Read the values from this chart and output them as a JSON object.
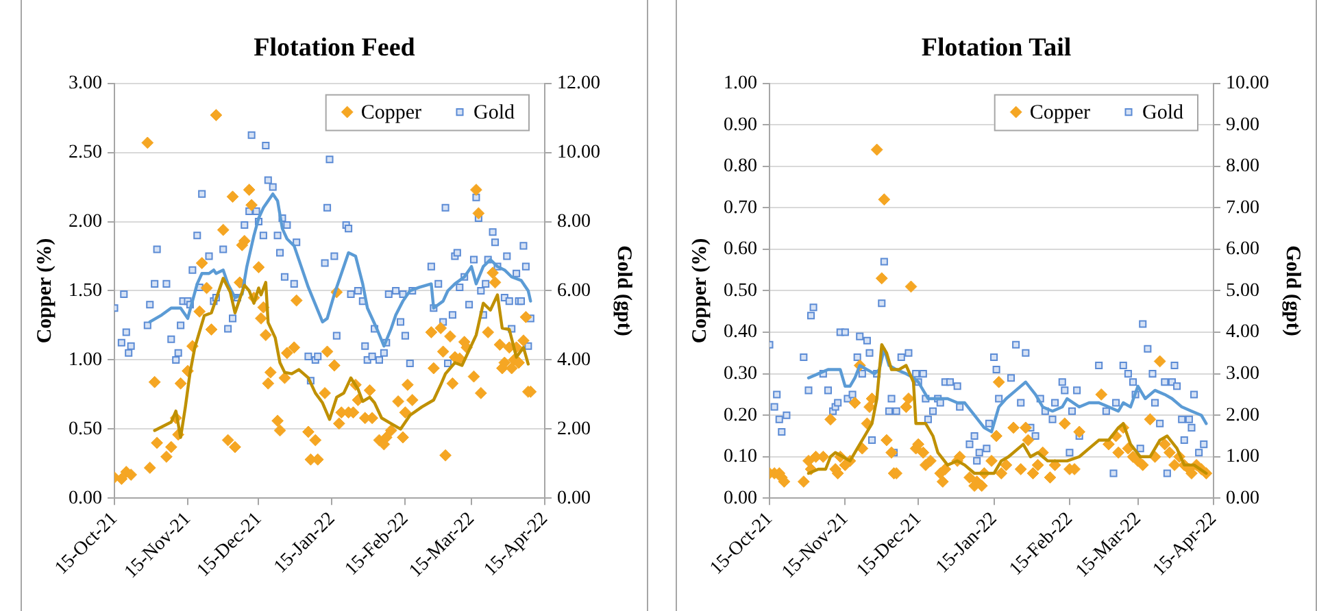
{
  "chart_data": [
    {
      "type": "scatter",
      "title": "Flotation Feed",
      "ylabel": "Copper (%)",
      "y2label": "Gold (gpt)",
      "grid": "y",
      "legend": "top right",
      "xlim": [
        "2021-10-15",
        "2022-04-15"
      ],
      "xticks": [
        {
          "value": "2021-10-15",
          "label": "15-Oct-21"
        },
        {
          "value": "2021-11-15",
          "label": "15-Nov-21"
        },
        {
          "value": "2021-12-15",
          "label": "15-Dec-21"
        },
        {
          "value": "2022-01-15",
          "label": "15-Jan-22"
        },
        {
          "value": "2022-02-15",
          "label": "15-Feb-22"
        },
        {
          "value": "2022-03-15",
          "label": "15-Mar-22"
        },
        {
          "value": "2022-04-15",
          "label": "15-Apr-22"
        }
      ],
      "ylim": [
        0,
        3
      ],
      "yticks": [
        {
          "value": 0,
          "label": "0.00"
        },
        {
          "value": 0.5,
          "label": "0.50"
        },
        {
          "value": 1,
          "label": "1.00"
        },
        {
          "value": 1.5,
          "label": "1.50"
        },
        {
          "value": 2,
          "label": "2.00"
        },
        {
          "value": 2.5,
          "label": "2.50"
        },
        {
          "value": 3,
          "label": "3.00"
        }
      ],
      "y2lim": [
        0,
        12
      ],
      "y2ticks": [
        {
          "value": 0,
          "label": "0.00"
        },
        {
          "value": 2,
          "label": "2.00"
        },
        {
          "value": 4,
          "label": "4.00"
        },
        {
          "value": 6,
          "label": "6.00"
        },
        {
          "value": 8,
          "label": "8.00"
        },
        {
          "value": 10,
          "label": "10.00"
        },
        {
          "value": 12,
          "label": "12.00"
        }
      ],
      "series": [
        {
          "type": "scatter",
          "name": "Copper",
          "color": "#f5a623",
          "marker": "diamond",
          "x": [
            "2021-10-15",
            "2021-10-18",
            "2021-10-20",
            "2021-10-22",
            "2021-10-29",
            "2021-10-30",
            "2021-11-01",
            "2021-11-02",
            "2021-11-06",
            "2021-11-08",
            "2021-11-10",
            "2021-11-11",
            "2021-11-12",
            "2021-11-15",
            "2021-11-17",
            "2021-11-20",
            "2021-11-21",
            "2021-11-23",
            "2021-11-25",
            "2021-11-27",
            "2021-11-30",
            "2021-12-02",
            "2021-12-04",
            "2021-12-05",
            "2021-12-07",
            "2021-12-08",
            "2021-12-09",
            "2021-12-11",
            "2021-12-12",
            "2021-12-13",
            "2021-12-15",
            "2021-12-16",
            "2021-12-17",
            "2021-12-18",
            "2021-12-19",
            "2021-12-20",
            "2021-12-23",
            "2021-12-24",
            "2021-12-26",
            "2021-12-27",
            "2021-12-30",
            "2021-12-31",
            "2022-01-05",
            "2022-01-06",
            "2022-01-08",
            "2022-01-09",
            "2022-01-12",
            "2022-01-13",
            "2022-01-16",
            "2022-01-17",
            "2022-01-18",
            "2022-01-19",
            "2022-01-22",
            "2022-01-24",
            "2022-01-25",
            "2022-01-26",
            "2022-01-29",
            "2022-01-31",
            "2022-02-01",
            "2022-02-04",
            "2022-02-06",
            "2022-02-07",
            "2022-02-09",
            "2022-02-12",
            "2022-02-14",
            "2022-02-15",
            "2022-02-16",
            "2022-02-18",
            "2022-02-26",
            "2022-02-27",
            "2022-03-02",
            "2022-03-03",
            "2022-03-04",
            "2022-03-06",
            "2022-03-07",
            "2022-03-08",
            "2022-03-10",
            "2022-03-12",
            "2022-03-13",
            "2022-03-16",
            "2022-03-17",
            "2022-03-18",
            "2022-03-19",
            "2022-03-22",
            "2022-03-24",
            "2022-03-25",
            "2022-03-27",
            "2022-03-28",
            "2022-03-29",
            "2022-03-31",
            "2022-04-01",
            "2022-04-02",
            "2022-04-03",
            "2022-04-04",
            "2022-04-06",
            "2022-04-07",
            "2022-04-08",
            "2022-04-09"
          ],
          "values": [
            0.15,
            0.14,
            0.19,
            0.17,
            2.57,
            0.22,
            0.84,
            0.4,
            0.3,
            0.37,
            0.58,
            0.46,
            0.83,
            0.92,
            1.1,
            1.35,
            1.7,
            1.52,
            1.22,
            2.77,
            1.94,
            0.42,
            2.18,
            0.37,
            1.56,
            1.83,
            1.86,
            2.23,
            2.12,
            1.45,
            1.67,
            1.3,
            1.38,
            1.18,
            0.83,
            0.91,
            0.56,
            0.49,
            0.87,
            1.05,
            1.09,
            1.43,
            0.48,
            0.28,
            0.42,
            0.28,
            0.76,
            1.06,
            0.96,
            1.49,
            0.54,
            0.62,
            0.62,
            0.62,
            0.82,
            0.71,
            0.58,
            0.78,
            0.58,
            0.42,
            0.39,
            0.44,
            0.49,
            0.7,
            0.44,
            0.62,
            0.82,
            0.71,
            1.2,
            0.94,
            1.23,
            1.06,
            0.31,
            1.17,
            0.83,
            1.02,
            1.01,
            1.13,
            1.09,
            0.88,
            2.23,
            2.06,
            0.76,
            1.2,
            1.63,
            1.56,
            1.11,
            0.94,
            0.98,
            1.09,
            0.94,
            1.0,
            1.09,
            0.98,
            1.14,
            1.31,
            0.77,
            0.77
          ]
        },
        {
          "type": "scatter",
          "name": "Gold",
          "color": "#5b8bd5",
          "marker": "square",
          "axis": "y2",
          "x": [
            "2021-10-15",
            "2021-10-18",
            "2021-10-19",
            "2021-10-20",
            "2021-10-21",
            "2021-10-22",
            "2021-10-29",
            "2021-10-30",
            "2021-11-01",
            "2021-11-02",
            "2021-11-06",
            "2021-11-08",
            "2021-11-10",
            "2021-11-11",
            "2021-11-12",
            "2021-11-13",
            "2021-11-15",
            "2021-11-16",
            "2021-11-17",
            "2021-11-19",
            "2021-11-20",
            "2021-11-21",
            "2021-11-24",
            "2021-11-26",
            "2021-11-27",
            "2021-11-30",
            "2021-12-02",
            "2021-12-04",
            "2021-12-06",
            "2021-12-08",
            "2021-12-09",
            "2021-12-11",
            "2021-12-12",
            "2021-12-14",
            "2021-12-15",
            "2021-12-17",
            "2021-12-18",
            "2021-12-19",
            "2021-12-21",
            "2021-12-23",
            "2021-12-24",
            "2021-12-25",
            "2021-12-26",
            "2021-12-27",
            "2021-12-30",
            "2021-12-31",
            "2022-01-05",
            "2022-01-06",
            "2022-01-08",
            "2022-01-09",
            "2022-01-12",
            "2022-01-13",
            "2022-01-14",
            "2022-01-16",
            "2022-01-17",
            "2022-01-21",
            "2022-01-22",
            "2022-01-23",
            "2022-01-26",
            "2022-01-28",
            "2022-01-29",
            "2022-01-30",
            "2022-02-01",
            "2022-02-02",
            "2022-02-04",
            "2022-02-06",
            "2022-02-07",
            "2022-02-08",
            "2022-02-11",
            "2022-02-13",
            "2022-02-14",
            "2022-02-15",
            "2022-02-17",
            "2022-02-18",
            "2022-02-26",
            "2022-02-27",
            "2022-03-01",
            "2022-03-03",
            "2022-03-04",
            "2022-03-05",
            "2022-03-07",
            "2022-03-08",
            "2022-03-09",
            "2022-03-10",
            "2022-03-12",
            "2022-03-14",
            "2022-03-16",
            "2022-03-17",
            "2022-03-18",
            "2022-03-19",
            "2022-03-20",
            "2022-03-21",
            "2022-03-22",
            "2022-03-24",
            "2022-03-25",
            "2022-03-26",
            "2022-03-29",
            "2022-03-30",
            "2022-03-31",
            "2022-04-01",
            "2022-04-03",
            "2022-04-04",
            "2022-04-05",
            "2022-04-06",
            "2022-04-07",
            "2022-04-08",
            "2022-04-09"
          ],
          "values": [
            5.5,
            4.5,
            5.9,
            4.8,
            4.2,
            4.4,
            5.0,
            5.6,
            6.2,
            7.2,
            6.2,
            4.6,
            4.0,
            4.2,
            5.0,
            5.7,
            5.7,
            5.6,
            6.6,
            7.6,
            6.1,
            8.8,
            7.0,
            5.7,
            5.8,
            7.2,
            4.9,
            5.2,
            5.8,
            6.2,
            7.9,
            8.3,
            10.5,
            8.3,
            8.0,
            7.6,
            10.2,
            9.2,
            9.0,
            7.6,
            7.1,
            8.1,
            6.4,
            7.9,
            6.2,
            7.4,
            4.1,
            3.4,
            4.0,
            4.1,
            6.8,
            8.4,
            9.8,
            7.0,
            4.7,
            7.9,
            7.8,
            5.9,
            6.0,
            5.7,
            4.4,
            4.0,
            4.1,
            4.9,
            4.0,
            4.2,
            4.5,
            5.9,
            6.0,
            5.1,
            5.9,
            4.7,
            3.9,
            6.0,
            6.7,
            5.5,
            6.2,
            5.1,
            8.4,
            3.9,
            5.3,
            7.0,
            7.1,
            6.1,
            6.4,
            5.6,
            6.9,
            8.7,
            8.1,
            6.0,
            5.3,
            6.2,
            6.9,
            7.7,
            7.4,
            6.7,
            5.8,
            7.0,
            5.7,
            4.9,
            6.5,
            5.7,
            5.7,
            7.3,
            6.7,
            4.4,
            5.2
          ]
        },
        {
          "type": "line",
          "color": "#bf9000",
          "x": [
            "2021-11-01",
            "2021-11-08",
            "2021-11-10",
            "2021-11-12",
            "2021-11-14",
            "2021-11-16",
            "2021-11-18",
            "2021-11-22",
            "2021-11-25",
            "2021-11-28",
            "2021-11-30",
            "2021-12-03",
            "2021-12-05",
            "2021-12-09",
            "2021-12-11",
            "2021-12-13",
            "2021-12-15",
            "2021-12-16",
            "2021-12-18",
            "2021-12-19",
            "2021-12-22",
            "2021-12-24",
            "2021-12-26",
            "2021-12-29",
            "2022-01-01",
            "2022-01-05",
            "2022-01-08",
            "2022-01-11",
            "2022-01-14",
            "2022-01-17",
            "2022-01-20",
            "2022-01-23",
            "2022-01-26",
            "2022-01-28",
            "2022-01-31",
            "2022-02-02",
            "2022-02-05",
            "2022-02-09",
            "2022-02-13",
            "2022-02-17",
            "2022-02-22",
            "2022-02-27",
            "2022-03-02",
            "2022-03-04",
            "2022-03-08",
            "2022-03-11",
            "2022-03-14",
            "2022-03-17",
            "2022-03-20",
            "2022-03-23",
            "2022-03-26",
            "2022-03-28",
            "2022-03-31",
            "2022-04-03",
            "2022-04-06",
            "2022-04-08"
          ],
          "values": [
            0.49,
            0.55,
            0.63,
            0.44,
            0.66,
            0.91,
            1.09,
            1.32,
            1.34,
            1.49,
            1.59,
            1.49,
            1.34,
            1.54,
            1.5,
            1.41,
            1.52,
            1.47,
            1.56,
            1.27,
            1.16,
            0.98,
            0.91,
            0.9,
            0.93,
            0.87,
            0.76,
            0.69,
            0.57,
            0.73,
            0.76,
            0.87,
            0.79,
            0.7,
            0.73,
            0.69,
            0.58,
            0.54,
            0.5,
            0.6,
            0.66,
            0.71,
            0.82,
            0.9,
            0.98,
            0.96,
            1.07,
            1.18,
            1.41,
            1.36,
            1.47,
            1.23,
            1.22,
            1.02,
            1.09,
            0.97
          ]
        },
        {
          "type": "line",
          "color": "#5b9bd5",
          "axis": "y2",
          "x": [
            "2021-10-30",
            "2021-11-04",
            "2021-11-08",
            "2021-11-12",
            "2021-11-15",
            "2021-11-17",
            "2021-11-19",
            "2021-11-21",
            "2021-11-24",
            "2021-11-26",
            "2021-11-27",
            "2021-11-30",
            "2021-12-02",
            "2021-12-05",
            "2021-12-08",
            "2021-12-10",
            "2021-12-13",
            "2021-12-15",
            "2021-12-17",
            "2021-12-19",
            "2021-12-21",
            "2021-12-23",
            "2021-12-25",
            "2021-12-27",
            "2021-12-30",
            "2022-01-02",
            "2022-01-05",
            "2022-01-08",
            "2022-01-11",
            "2022-01-13",
            "2022-01-16",
            "2022-01-19",
            "2022-01-22",
            "2022-01-25",
            "2022-01-28",
            "2022-01-30",
            "2022-02-03",
            "2022-02-06",
            "2022-02-09",
            "2022-02-11",
            "2022-02-14",
            "2022-02-17",
            "2022-02-21",
            "2022-02-26",
            "2022-02-27",
            "2022-03-03",
            "2022-03-05",
            "2022-03-08",
            "2022-03-12",
            "2022-03-15",
            "2022-03-17",
            "2022-03-20",
            "2022-03-23",
            "2022-03-26",
            "2022-03-29",
            "2022-04-01",
            "2022-04-05",
            "2022-04-08",
            "2022-04-09"
          ],
          "values": [
            5.1,
            5.3,
            5.5,
            5.5,
            5.2,
            5.7,
            6.2,
            6.5,
            6.5,
            6.6,
            6.5,
            6.6,
            6.2,
            5.8,
            5.9,
            6.7,
            7.6,
            8.1,
            8.4,
            8.6,
            8.8,
            8.6,
            7.8,
            7.5,
            7.3,
            6.7,
            6.1,
            5.6,
            5.1,
            5.2,
            5.9,
            6.5,
            7.1,
            7.0,
            6.2,
            5.5,
            4.9,
            4.4,
            4.9,
            5.3,
            5.7,
            6.0,
            6.1,
            6.2,
            5.5,
            5.7,
            6.0,
            6.2,
            6.4,
            6.7,
            6.2,
            6.7,
            6.9,
            6.7,
            6.6,
            6.4,
            6.3,
            6.0,
            5.7
          ]
        }
      ]
    },
    {
      "type": "scatter",
      "title": "Flotation Tail",
      "ylabel": "Copper (%)",
      "y2label": "Gold (gpt)",
      "grid": "y",
      "legend": "top right",
      "xlim": [
        "2021-10-15",
        "2022-04-15"
      ],
      "xticks": [
        {
          "value": "2021-10-15",
          "label": "15-Oct-21"
        },
        {
          "value": "2021-11-15",
          "label": "15-Nov-21"
        },
        {
          "value": "2021-12-15",
          "label": "15-Dec-21"
        },
        {
          "value": "2022-01-15",
          "label": "15-Jan-22"
        },
        {
          "value": "2022-02-15",
          "label": "15-Feb-22"
        },
        {
          "value": "2022-03-15",
          "label": "15-Mar-22"
        },
        {
          "value": "2022-04-15",
          "label": "15-Apr-22"
        }
      ],
      "ylim": [
        0,
        1
      ],
      "yticks": [
        {
          "value": 0,
          "label": "0.00"
        },
        {
          "value": 0.1,
          "label": "0.10"
        },
        {
          "value": 0.2,
          "label": "0.20"
        },
        {
          "value": 0.3,
          "label": "0.30"
        },
        {
          "value": 0.4,
          "label": "0.40"
        },
        {
          "value": 0.5,
          "label": "0.50"
        },
        {
          "value": 0.6,
          "label": "0.60"
        },
        {
          "value": 0.7,
          "label": "0.70"
        },
        {
          "value": 0.8,
          "label": "0.80"
        },
        {
          "value": 0.9,
          "label": "0.90"
        },
        {
          "value": 1,
          "label": "1.00"
        }
      ],
      "y2lim": [
        0,
        10
      ],
      "y2ticks": [
        {
          "value": 0,
          "label": "0.00"
        },
        {
          "value": 1,
          "label": "1.00"
        },
        {
          "value": 2,
          "label": "2.00"
        },
        {
          "value": 3,
          "label": "3.00"
        },
        {
          "value": 4,
          "label": "4.00"
        },
        {
          "value": 5,
          "label": "5.00"
        },
        {
          "value": 6,
          "label": "6.00"
        },
        {
          "value": 7,
          "label": "7.00"
        },
        {
          "value": 8,
          "label": "8.00"
        },
        {
          "value": 9,
          "label": "9.00"
        },
        {
          "value": 10,
          "label": "10.00"
        }
      ],
      "series": [
        {
          "type": "scatter",
          "name": "Copper",
          "color": "#f5a623",
          "marker": "diamond",
          "x": [
            "2021-10-15",
            "2021-10-17",
            "2021-10-19",
            "2021-10-20",
            "2021-10-21",
            "2021-10-29",
            "2021-10-31",
            "2021-11-01",
            "2021-11-03",
            "2021-11-06",
            "2021-11-09",
            "2021-11-11",
            "2021-11-12",
            "2021-11-13",
            "2021-11-15",
            "2021-11-17",
            "2021-11-19",
            "2021-11-21",
            "2021-11-22",
            "2021-11-24",
            "2021-11-25",
            "2021-11-26",
            "2021-11-28",
            "2021-11-30",
            "2021-12-01",
            "2021-12-02",
            "2021-12-04",
            "2021-12-05",
            "2021-12-06",
            "2021-12-10",
            "2021-12-11",
            "2021-12-12",
            "2021-12-14",
            "2021-12-15",
            "2021-12-17",
            "2021-12-18",
            "2021-12-20",
            "2021-12-24",
            "2021-12-25",
            "2021-12-26",
            "2021-12-31",
            "2022-01-01",
            "2022-01-05",
            "2022-01-07",
            "2022-01-08",
            "2022-01-10",
            "2022-01-11",
            "2022-01-14",
            "2022-01-16",
            "2022-01-17",
            "2022-01-18",
            "2022-01-20",
            "2022-01-23",
            "2022-01-26",
            "2022-01-28",
            "2022-01-29",
            "2022-01-31",
            "2022-02-02",
            "2022-02-04",
            "2022-02-07",
            "2022-02-09",
            "2022-02-13",
            "2022-02-15",
            "2022-02-17",
            "2022-02-19",
            "2022-02-28",
            "2022-03-03",
            "2022-03-06",
            "2022-03-07",
            "2022-03-09",
            "2022-03-11",
            "2022-03-13",
            "2022-03-15",
            "2022-03-17",
            "2022-03-20",
            "2022-03-22",
            "2022-03-24",
            "2022-03-26",
            "2022-03-28",
            "2022-03-30",
            "2022-04-01",
            "2022-04-03",
            "2022-04-05",
            "2022-04-06",
            "2022-04-08",
            "2022-04-10",
            "2022-04-12"
          ],
          "values": [
            0.06,
            0.06,
            0.06,
            0.05,
            0.04,
            0.04,
            0.09,
            0.07,
            0.1,
            0.1,
            0.19,
            0.07,
            0.06,
            0.1,
            0.08,
            0.09,
            0.23,
            0.32,
            0.12,
            0.18,
            0.22,
            0.24,
            0.84,
            0.53,
            0.72,
            0.14,
            0.11,
            0.06,
            0.06,
            0.22,
            0.24,
            0.51,
            0.12,
            0.13,
            0.11,
            0.08,
            0.09,
            0.06,
            0.04,
            0.07,
            0.09,
            0.1,
            0.05,
            0.03,
            0.04,
            0.03,
            0.06,
            0.09,
            0.15,
            0.28,
            0.06,
            0.08,
            0.17,
            0.07,
            0.17,
            0.14,
            0.06,
            0.08,
            0.11,
            0.05,
            0.08,
            0.18,
            0.07,
            0.07,
            0.16,
            0.25,
            0.13,
            0.15,
            0.11,
            0.17,
            0.12,
            0.1,
            0.09,
            0.08,
            0.19,
            0.1,
            0.33,
            0.13,
            0.11,
            0.08,
            0.1,
            0.08,
            0.07,
            0.06,
            0.08,
            0.07,
            0.06
          ]
        },
        {
          "type": "scatter",
          "name": "Gold",
          "color": "#5b8bd5",
          "marker": "square",
          "axis": "y2",
          "x": [
            "2021-10-15",
            "2021-10-17",
            "2021-10-18",
            "2021-10-19",
            "2021-10-20",
            "2021-10-22",
            "2021-10-29",
            "2021-10-31",
            "2021-11-01",
            "2021-11-02",
            "2021-11-06",
            "2021-11-08",
            "2021-11-10",
            "2021-11-11",
            "2021-11-12",
            "2021-11-13",
            "2021-11-15",
            "2021-11-16",
            "2021-11-18",
            "2021-11-20",
            "2021-11-21",
            "2021-11-22",
            "2021-11-24",
            "2021-11-25",
            "2021-11-26",
            "2021-11-28",
            "2021-11-30",
            "2021-12-01",
            "2021-12-03",
            "2021-12-04",
            "2021-12-05",
            "2021-12-06",
            "2021-12-08",
            "2021-12-11",
            "2021-12-14",
            "2021-12-15",
            "2021-12-17",
            "2021-12-18",
            "2021-12-19",
            "2021-12-21",
            "2021-12-23",
            "2021-12-24",
            "2021-12-26",
            "2021-12-28",
            "2021-12-31",
            "2022-01-01",
            "2022-01-05",
            "2022-01-07",
            "2022-01-08",
            "2022-01-09",
            "2022-01-12",
            "2022-01-13",
            "2022-01-15",
            "2022-01-16",
            "2022-01-17",
            "2022-01-22",
            "2022-01-24",
            "2022-01-26",
            "2022-01-28",
            "2022-01-30",
            "2022-02-01",
            "2022-02-03",
            "2022-02-05",
            "2022-02-08",
            "2022-02-09",
            "2022-02-12",
            "2022-02-13",
            "2022-02-15",
            "2022-02-16",
            "2022-02-18",
            "2022-02-19",
            "2022-02-27",
            "2022-03-02",
            "2022-03-05",
            "2022-03-06",
            "2022-03-09",
            "2022-03-11",
            "2022-03-13",
            "2022-03-14",
            "2022-03-16",
            "2022-03-17",
            "2022-03-19",
            "2022-03-21",
            "2022-03-22",
            "2022-03-24",
            "2022-03-26",
            "2022-03-27",
            "2022-03-29",
            "2022-03-30",
            "2022-03-31",
            "2022-04-02",
            "2022-04-03",
            "2022-04-05",
            "2022-04-06",
            "2022-04-07",
            "2022-04-09",
            "2022-04-11"
          ],
          "values": [
            3.7,
            2.2,
            2.5,
            1.9,
            1.6,
            2.0,
            3.4,
            2.6,
            4.4,
            4.6,
            3.0,
            2.6,
            2.1,
            2.2,
            2.3,
            4.0,
            4.0,
            2.4,
            2.5,
            3.4,
            3.9,
            3.0,
            3.8,
            3.5,
            1.4,
            3.0,
            4.7,
            5.7,
            2.1,
            2.4,
            1.1,
            2.1,
            3.4,
            3.5,
            3.0,
            2.8,
            3.0,
            2.4,
            1.9,
            2.1,
            2.4,
            2.3,
            2.8,
            2.8,
            2.7,
            2.2,
            1.3,
            1.5,
            0.9,
            1.1,
            1.2,
            1.8,
            3.4,
            3.1,
            2.4,
            2.9,
            3.7,
            2.3,
            3.5,
            1.7,
            1.5,
            2.4,
            2.1,
            1.9,
            2.3,
            2.8,
            2.6,
            1.1,
            2.1,
            2.6,
            1.5,
            3.2,
            2.1,
            0.6,
            2.3,
            3.2,
            3.0,
            2.8,
            2.5,
            1.2,
            4.2,
            3.6,
            3.0,
            2.3,
            1.8,
            2.8,
            0.6,
            2.8,
            3.2,
            2.7,
            1.9,
            1.4,
            1.9,
            1.7,
            2.5,
            1.1,
            1.3
          ]
        },
        {
          "type": "line",
          "color": "#bf9000",
          "x": [
            "2021-10-31",
            "2021-11-04",
            "2021-11-07",
            "2021-11-09",
            "2021-11-11",
            "2021-11-14",
            "2021-11-17",
            "2021-11-20",
            "2021-11-23",
            "2021-11-26",
            "2021-11-28",
            "2021-11-30",
            "2021-12-02",
            "2021-12-04",
            "2021-12-07",
            "2021-12-10",
            "2021-12-13",
            "2021-12-14",
            "2021-12-18",
            "2021-12-21",
            "2021-12-23",
            "2021-12-27",
            "2021-12-31",
            "2022-01-03",
            "2022-01-07",
            "2022-01-11",
            "2022-01-15",
            "2022-01-18",
            "2022-01-21",
            "2022-01-25",
            "2022-01-27",
            "2022-01-30",
            "2022-02-02",
            "2022-02-06",
            "2022-02-10",
            "2022-02-14",
            "2022-02-19",
            "2022-02-23",
            "2022-02-27",
            "2022-03-03",
            "2022-03-07",
            "2022-03-09",
            "2022-03-12",
            "2022-03-16",
            "2022-03-20",
            "2022-03-24",
            "2022-03-27",
            "2022-03-31",
            "2022-04-03",
            "2022-04-07",
            "2022-04-12"
          ],
          "values": [
            0.06,
            0.07,
            0.07,
            0.1,
            0.11,
            0.1,
            0.09,
            0.12,
            0.15,
            0.18,
            0.24,
            0.37,
            0.35,
            0.31,
            0.31,
            0.32,
            0.28,
            0.18,
            0.18,
            0.15,
            0.11,
            0.08,
            0.09,
            0.08,
            0.06,
            0.06,
            0.06,
            0.09,
            0.1,
            0.12,
            0.13,
            0.1,
            0.11,
            0.09,
            0.09,
            0.09,
            0.1,
            0.12,
            0.14,
            0.14,
            0.17,
            0.18,
            0.13,
            0.1,
            0.1,
            0.14,
            0.15,
            0.12,
            0.08,
            0.08,
            0.06
          ]
        },
        {
          "type": "line",
          "color": "#5b9bd5",
          "axis": "y2",
          "x": [
            "2021-10-31",
            "2021-11-04",
            "2021-11-08",
            "2021-11-13",
            "2021-11-15",
            "2021-11-17",
            "2021-11-19",
            "2021-11-21",
            "2021-11-24",
            "2021-11-27",
            "2021-11-29",
            "2021-12-01",
            "2021-12-03",
            "2021-12-06",
            "2021-12-10",
            "2021-12-13",
            "2021-12-15",
            "2021-12-19",
            "2021-12-23",
            "2021-12-27",
            "2021-12-31",
            "2022-01-03",
            "2022-01-07",
            "2022-01-11",
            "2022-01-14",
            "2022-01-17",
            "2022-01-20",
            "2022-01-24",
            "2022-01-28",
            "2022-02-01",
            "2022-02-04",
            "2022-02-08",
            "2022-02-12",
            "2022-02-14",
            "2022-02-19",
            "2022-02-23",
            "2022-02-27",
            "2022-03-03",
            "2022-03-07",
            "2022-03-09",
            "2022-03-12",
            "2022-03-15",
            "2022-03-18",
            "2022-03-22",
            "2022-03-26",
            "2022-03-29",
            "2022-04-02",
            "2022-04-06",
            "2022-04-10",
            "2022-04-12"
          ],
          "values": [
            2.9,
            3.0,
            3.1,
            3.1,
            2.7,
            2.7,
            2.9,
            3.2,
            3.1,
            3.0,
            3.1,
            3.6,
            3.2,
            3.1,
            3.0,
            2.9,
            2.8,
            2.4,
            2.4,
            2.4,
            2.3,
            2.3,
            2.0,
            1.7,
            1.6,
            2.2,
            2.4,
            2.6,
            2.8,
            2.5,
            2.2,
            2.1,
            2.2,
            2.4,
            2.2,
            2.3,
            2.3,
            2.2,
            2.1,
            2.3,
            2.2,
            2.7,
            2.4,
            2.6,
            2.5,
            2.4,
            2.2,
            2.1,
            2.0,
            1.8
          ]
        }
      ]
    }
  ]
}
